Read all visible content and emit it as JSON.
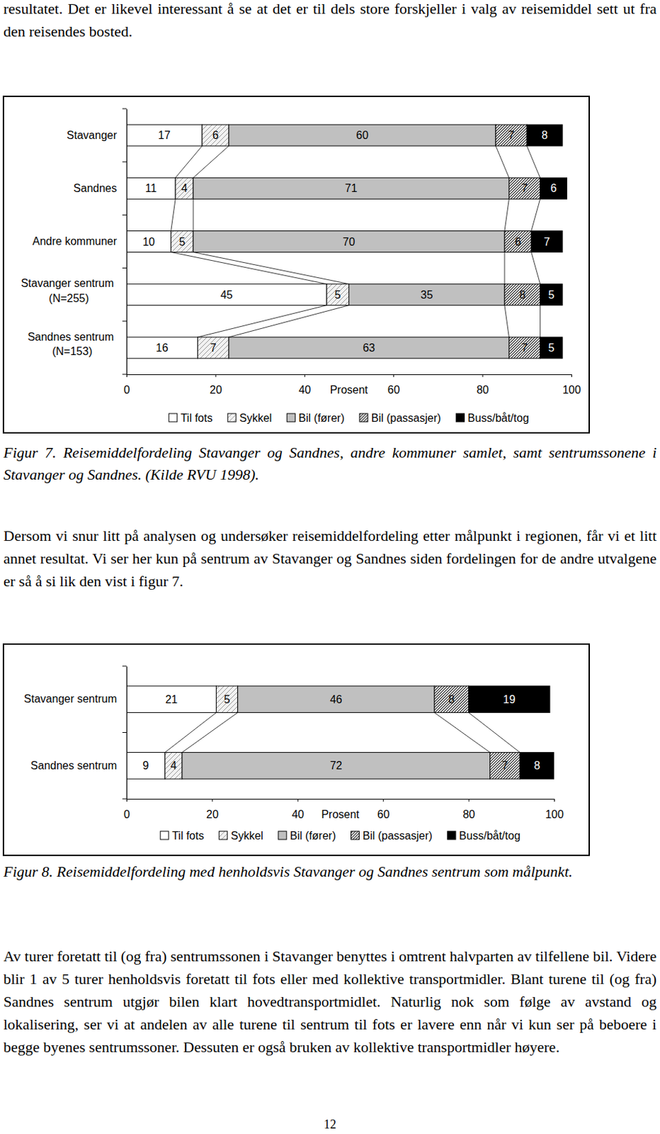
{
  "chart_data": [
    {
      "type": "bar",
      "orientation": "horizontal",
      "stacked": true,
      "data_labels": true,
      "categories": [
        "Stavanger",
        "Sandnes",
        "Andre kommuner",
        "Stavanger sentrum (N=255)",
        "Sandnes sentrum (N=153)"
      ],
      "series": [
        {
          "name": "Til fots",
          "color": "#ffffff",
          "values": [
            17,
            11,
            10,
            45,
            16
          ]
        },
        {
          "name": "Sykkel",
          "color": "#f2f2f2",
          "values": [
            6,
            4,
            5,
            5,
            7
          ]
        },
        {
          "name": "Bil (fører)",
          "color": "#c0c0c0",
          "values": [
            60,
            71,
            70,
            35,
            63
          ]
        },
        {
          "name": "Bil (passasjer)",
          "color": "#d9d9d9",
          "values": [
            7,
            7,
            6,
            8,
            7
          ]
        },
        {
          "name": "Buss/båt/tog",
          "color": "#000000",
          "values": [
            8,
            6,
            7,
            5,
            5
          ]
        }
      ],
      "xlabel": "Prosent",
      "xlim": [
        0,
        100
      ],
      "xticks": [
        0,
        20,
        40,
        60,
        80,
        100
      ],
      "legend": "bottom"
    },
    {
      "type": "bar",
      "orientation": "horizontal",
      "stacked": true,
      "data_labels": true,
      "categories": [
        "Stavanger sentrum",
        "Sandnes sentrum"
      ],
      "series": [
        {
          "name": "Til fots",
          "color": "#ffffff",
          "values": [
            21,
            9
          ]
        },
        {
          "name": "Sykkel",
          "color": "#f2f2f2",
          "values": [
            5,
            4
          ]
        },
        {
          "name": "Bil (fører)",
          "color": "#c0c0c0",
          "values": [
            46,
            72
          ]
        },
        {
          "name": "Bil (passasjer)",
          "color": "#d9d9d9",
          "values": [
            8,
            7
          ]
        },
        {
          "name": "Buss/båt/tog",
          "color": "#000000",
          "values": [
            19,
            8
          ]
        }
      ],
      "xlabel": "Prosent",
      "xlim": [
        0,
        100
      ],
      "xticks": [
        0,
        20,
        40,
        60,
        80,
        100
      ],
      "legend": "bottom"
    }
  ],
  "document": {
    "paragraphs": [
      "resultatet. Det er likevel interessant å se at det er til dels store forskjeller i valg av reisemiddel sett ut fra den reisendes bosted.",
      "Dersom vi snur litt på analysen og undersøker reisemiddelfordeling etter målpunkt i regionen, får vi et litt annet resultat. Vi ser her kun på sentrum av Stavanger og Sandnes siden fordelingen for de andre utvalgene er så å si lik den vist i figur 7.",
      "Av turer foretatt til (og fra) sentrumssonen i Stavanger benyttes i omtrent halvparten av tilfellene bil. Videre blir 1 av 5 turer henholdsvis foretatt til fots eller med kollektive transportmidler. Blant turene til (og fra) Sandnes sentrum utgjør bilen klart hovedtransportmidlet. Naturlig nok som følge av avstand og lokalisering, ser vi at andelen av alle turene til sentrum til fots er lavere enn når vi kun ser på beboere i begge byenes sentrumssoner. Dessuten er også bruken av kollektive transportmidler høyere."
    ],
    "captions": [
      "Figur 7. Reisemiddelfordeling Stavanger og Sandnes, andre kommuner samlet, samt sentrumssonene i Stavanger og Sandnes. (Kilde RVU 1998).",
      "Figur 8. Reisemiddelfordeling med henholdsvis Stavanger og Sandnes sentrum som målpunkt."
    ],
    "page_number": "12"
  }
}
